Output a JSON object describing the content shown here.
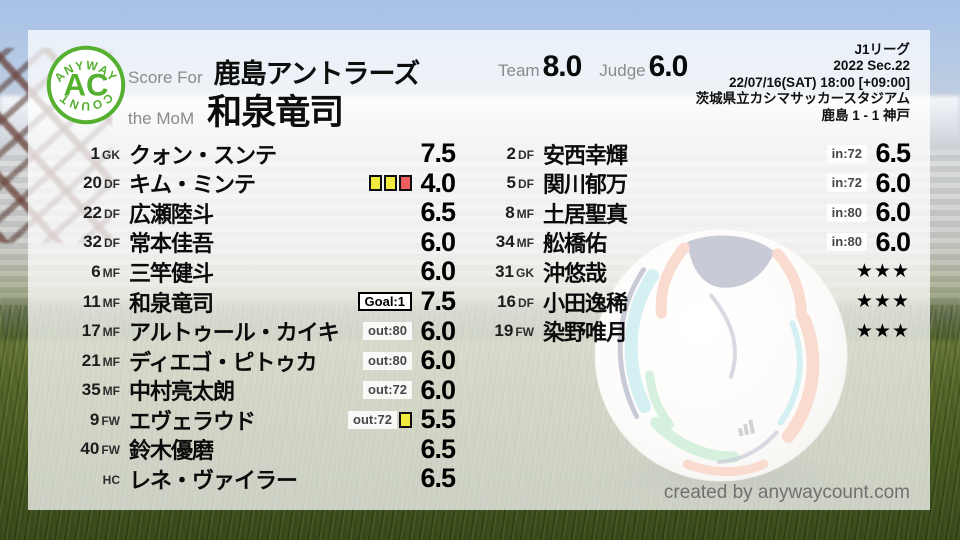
{
  "header": {
    "logo": {
      "arc_top": "ANYWAY",
      "center": "AC",
      "arc_bottom": "COUNT"
    },
    "score_for_label": "Score For",
    "team_name": "鹿島アントラーズ",
    "mom_label": "the MoM",
    "mom_name": "和泉竜司",
    "team_label": "Team",
    "team_score": "8.0",
    "judge_label": "Judge",
    "judge_score": "6.0",
    "match_info": [
      "J1リーグ",
      "2022 Sec.22",
      "22/07/16(SAT) 18:00 [+09:00]",
      "茨城県立カシマサッカースタジアム",
      "鹿島 1 - 1 神戸"
    ]
  },
  "players": {
    "left": [
      {
        "num": "1",
        "pos": "GK",
        "name": "クォン・スンテ",
        "badges": [],
        "rating": "7.5"
      },
      {
        "num": "20",
        "pos": "DF",
        "name": "キム・ミンテ",
        "badges": [
          {
            "type": "card",
            "color": "yellow"
          },
          {
            "type": "card",
            "color": "yellow"
          },
          {
            "type": "card",
            "color": "red"
          }
        ],
        "rating": "4.0"
      },
      {
        "num": "22",
        "pos": "DF",
        "name": "広瀬陸斗",
        "badges": [],
        "rating": "6.5"
      },
      {
        "num": "32",
        "pos": "DF",
        "name": "常本佳吾",
        "badges": [],
        "rating": "6.0"
      },
      {
        "num": "6",
        "pos": "MF",
        "name": "三竿健斗",
        "badges": [],
        "rating": "6.0"
      },
      {
        "num": "11",
        "pos": "MF",
        "name": "和泉竜司",
        "badges": [
          {
            "type": "goal",
            "label": "Goal:1"
          }
        ],
        "rating": "7.5"
      },
      {
        "num": "17",
        "pos": "MF",
        "name": "アルトゥール・カイキ",
        "badges": [
          {
            "type": "sub",
            "label": "out:80"
          }
        ],
        "rating": "6.0"
      },
      {
        "num": "21",
        "pos": "MF",
        "name": "ディエゴ・ピトゥカ",
        "badges": [
          {
            "type": "sub",
            "label": "out:80"
          }
        ],
        "rating": "6.0"
      },
      {
        "num": "35",
        "pos": "MF",
        "name": "中村亮太朗",
        "badges": [
          {
            "type": "sub",
            "label": "out:72"
          }
        ],
        "rating": "6.0"
      },
      {
        "num": "9",
        "pos": "FW",
        "name": "エヴェラウド",
        "badges": [
          {
            "type": "sub",
            "label": "out:72"
          },
          {
            "type": "card",
            "color": "yellow"
          }
        ],
        "rating": "5.5"
      },
      {
        "num": "40",
        "pos": "FW",
        "name": "鈴木優磨",
        "badges": [],
        "rating": "6.5"
      },
      {
        "num": "",
        "pos": "HC",
        "name": "レネ・ヴァイラー",
        "badges": [],
        "rating": "6.5"
      }
    ],
    "right": [
      {
        "num": "2",
        "pos": "DF",
        "name": "安西幸輝",
        "badges": [
          {
            "type": "sub",
            "label": "in:72"
          }
        ],
        "rating": "6.5"
      },
      {
        "num": "5",
        "pos": "DF",
        "name": "関川郁万",
        "badges": [
          {
            "type": "sub",
            "label": "in:72"
          }
        ],
        "rating": "6.0"
      },
      {
        "num": "8",
        "pos": "MF",
        "name": "土居聖真",
        "badges": [
          {
            "type": "sub",
            "label": "in:80"
          }
        ],
        "rating": "6.0"
      },
      {
        "num": "34",
        "pos": "MF",
        "name": "舩橋佑",
        "badges": [
          {
            "type": "sub",
            "label": "in:80"
          }
        ],
        "rating": "6.0"
      },
      {
        "num": "31",
        "pos": "GK",
        "name": "沖悠哉",
        "badges": [],
        "rating": "★★★"
      },
      {
        "num": "16",
        "pos": "DF",
        "name": "小田逸稀",
        "badges": [],
        "rating": "★★★"
      },
      {
        "num": "19",
        "pos": "FW",
        "name": "染野唯月",
        "badges": [],
        "rating": "★★★"
      }
    ]
  },
  "footer": {
    "credit": "created by anywaycount.com"
  },
  "colors": {
    "logo_green": "#54b02e",
    "yellow_card": "#f2e93e",
    "red_card": "#ef5e5e",
    "text_black": "#0d0d0d",
    "label_gray": "#8b8b8b",
    "credit_gray": "#707070"
  }
}
